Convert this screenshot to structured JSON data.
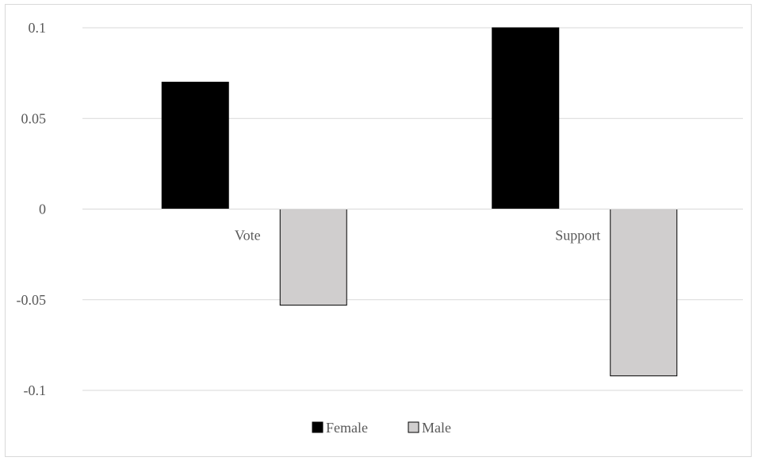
{
  "chart_data": {
    "type": "bar",
    "categories": [
      "Vote",
      "Support"
    ],
    "series": [
      {
        "name": "Female",
        "values": [
          0.07,
          0.1
        ],
        "color": "#000000"
      },
      {
        "name": "Male",
        "values": [
          -0.053,
          -0.092
        ],
        "color": "#d0cece"
      }
    ],
    "y_ticks": [
      "0.1",
      "0.05",
      "0",
      "-0.05",
      "-0.1"
    ],
    "ylim": [
      -0.1,
      0.1
    ],
    "grid": true,
    "legend_position": "bottom"
  }
}
